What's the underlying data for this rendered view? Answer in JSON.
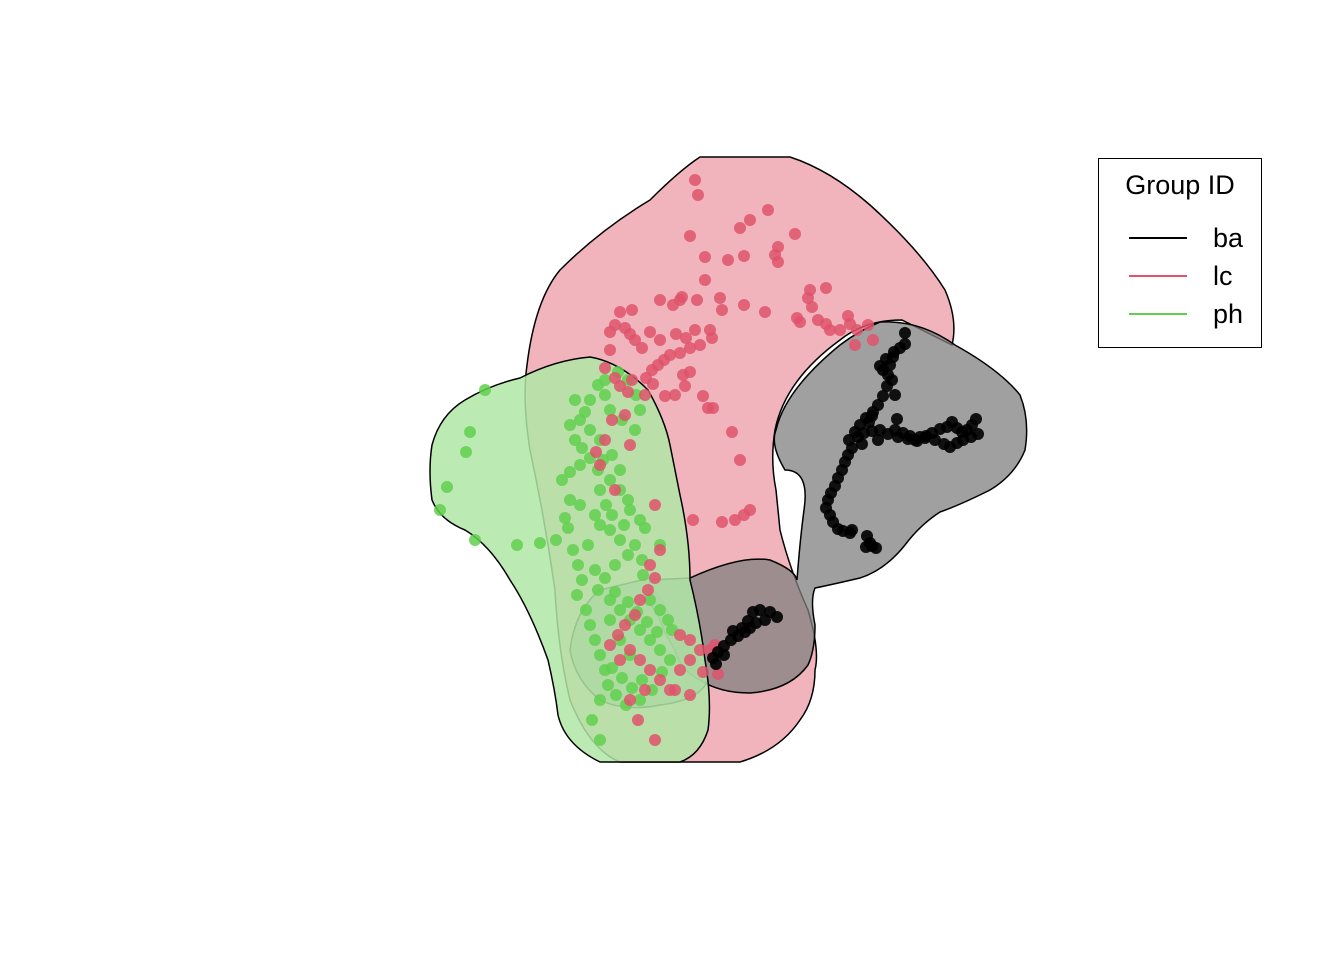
{
  "chart_data": {
    "type": "scatter",
    "title": "",
    "xlabel": "",
    "ylabel": "",
    "axes_shown": false,
    "grid": false,
    "legend": {
      "title": "Group ID",
      "placement": "top-right",
      "items": [
        {
          "label": "ba",
          "color": "#000000"
        },
        {
          "label": "lc",
          "color": "#DF536B"
        },
        {
          "label": "ph",
          "color": "#61D04F"
        }
      ]
    },
    "series": [
      {
        "name": "ba",
        "color": "#000000",
        "hull_fill": "#808080",
        "points": [
          [
            905,
            333
          ],
          [
            900,
            348
          ],
          [
            893,
            357
          ],
          [
            890,
            365
          ],
          [
            888,
            375
          ],
          [
            887,
            386
          ],
          [
            883,
            396
          ],
          [
            878,
            405
          ],
          [
            873,
            412
          ],
          [
            866,
            418
          ],
          [
            860,
            425
          ],
          [
            855,
            432
          ],
          [
            849,
            440
          ],
          [
            852,
            448
          ],
          [
            848,
            455
          ],
          [
            845,
            462
          ],
          [
            842,
            470
          ],
          [
            838,
            478
          ],
          [
            835,
            486
          ],
          [
            831,
            493
          ],
          [
            828,
            500
          ],
          [
            826,
            508
          ],
          [
            830,
            515
          ],
          [
            833,
            522
          ],
          [
            838,
            529
          ],
          [
            843,
            531
          ],
          [
            850,
            533
          ],
          [
            852,
            530
          ],
          [
            867,
            536
          ],
          [
            870,
            543
          ],
          [
            876,
            548
          ],
          [
            866,
            547
          ],
          [
            872,
            546
          ],
          [
            895,
            430
          ],
          [
            903,
            433
          ],
          [
            910,
            436
          ],
          [
            915,
            440
          ],
          [
            920,
            437
          ],
          [
            926,
            436
          ],
          [
            932,
            433
          ],
          [
            940,
            429
          ],
          [
            947,
            427
          ],
          [
            952,
            422
          ],
          [
            957,
            428
          ],
          [
            962,
            432
          ],
          [
            967,
            430
          ],
          [
            972,
            425
          ],
          [
            976,
            419
          ],
          [
            978,
            434
          ],
          [
            971,
            437
          ],
          [
            963,
            440
          ],
          [
            957,
            443
          ],
          [
            950,
            447
          ],
          [
            944,
            444
          ],
          [
            935,
            440
          ],
          [
            925,
            438
          ],
          [
            917,
            441
          ],
          [
            908,
            439
          ],
          [
            898,
            437
          ],
          [
            888,
            434
          ],
          [
            880,
            430
          ],
          [
            872,
            431
          ],
          [
            864,
            433
          ],
          [
            858,
            437
          ],
          [
            862,
            444
          ],
          [
            895,
            395
          ],
          [
            892,
            380
          ],
          [
            883,
            370
          ],
          [
            897,
            419
          ],
          [
            869,
            422
          ],
          [
            905,
            344
          ],
          [
            894,
            352
          ],
          [
            886,
            359
          ],
          [
            880,
            366
          ],
          [
            872,
            416
          ],
          [
            878,
            440
          ],
          [
            760,
            610
          ],
          [
            770,
            612
          ],
          [
            777,
            617
          ],
          [
            765,
            620
          ],
          [
            756,
            623
          ],
          [
            750,
            628
          ],
          [
            745,
            632
          ],
          [
            738,
            636
          ],
          [
            731,
            640
          ],
          [
            724,
            646
          ],
          [
            718,
            652
          ],
          [
            713,
            658
          ],
          [
            716,
            664
          ],
          [
            724,
            655
          ],
          [
            742,
            628
          ],
          [
            733,
            631
          ],
          [
            753,
            612
          ],
          [
            748,
            621
          ]
        ]
      },
      {
        "name": "lc",
        "color": "#DF536B",
        "hull_fill": "#EEA7B2",
        "points": [
          [
            695,
            180
          ],
          [
            698,
            195
          ],
          [
            768,
            210
          ],
          [
            750,
            220
          ],
          [
            740,
            228
          ],
          [
            795,
            234
          ],
          [
            690,
            236
          ],
          [
            778,
            247
          ],
          [
            778,
            262
          ],
          [
            744,
            256
          ],
          [
            728,
            260
          ],
          [
            705,
            257
          ],
          [
            775,
            255
          ],
          [
            705,
            280
          ],
          [
            810,
            290
          ],
          [
            826,
            288
          ],
          [
            808,
            298
          ],
          [
            660,
            300
          ],
          [
            680,
            300
          ],
          [
            682,
            297
          ],
          [
            673,
            305
          ],
          [
            620,
            312
          ],
          [
            632,
            310
          ],
          [
            697,
            300
          ],
          [
            720,
            298
          ],
          [
            722,
            310
          ],
          [
            744,
            305
          ],
          [
            765,
            312
          ],
          [
            812,
            307
          ],
          [
            800,
            322
          ],
          [
            797,
            318
          ],
          [
            818,
            320
          ],
          [
            826,
            324
          ],
          [
            830,
            330
          ],
          [
            840,
            330
          ],
          [
            848,
            316
          ],
          [
            850,
            324
          ],
          [
            857,
            330
          ],
          [
            868,
            325
          ],
          [
            873,
            340
          ],
          [
            855,
            345
          ],
          [
            625,
            328
          ],
          [
            615,
            325
          ],
          [
            610,
            332
          ],
          [
            630,
            334
          ],
          [
            650,
            332
          ],
          [
            635,
            340
          ],
          [
            642,
            348
          ],
          [
            660,
            340
          ],
          [
            676,
            334
          ],
          [
            686,
            338
          ],
          [
            695,
            330
          ],
          [
            710,
            330
          ],
          [
            712,
            338
          ],
          [
            700,
            345
          ],
          [
            690,
            348
          ],
          [
            680,
            353
          ],
          [
            670,
            355
          ],
          [
            664,
            360
          ],
          [
            658,
            365
          ],
          [
            652,
            370
          ],
          [
            646,
            378
          ],
          [
            653,
            384
          ],
          [
            683,
            375
          ],
          [
            690,
            372
          ],
          [
            610,
            350
          ],
          [
            605,
            368
          ],
          [
            615,
            378
          ],
          [
            620,
            386
          ],
          [
            628,
            392
          ],
          [
            665,
            396
          ],
          [
            675,
            395
          ],
          [
            685,
            386
          ],
          [
            703,
            396
          ],
          [
            713,
            408
          ],
          [
            708,
            408
          ],
          [
            732,
            432
          ],
          [
            740,
            460
          ],
          [
            693,
            520
          ],
          [
            722,
            522
          ],
          [
            735,
            520
          ],
          [
            744,
            515
          ],
          [
            750,
            510
          ],
          [
            615,
            490
          ],
          [
            600,
            465
          ],
          [
            596,
            452
          ],
          [
            605,
            440
          ],
          [
            612,
            420
          ],
          [
            625,
            415
          ],
          [
            632,
            380
          ],
          [
            645,
            395
          ],
          [
            630,
            445
          ],
          [
            655,
            505
          ],
          [
            660,
            550
          ],
          [
            650,
            565
          ],
          [
            655,
            578
          ],
          [
            648,
            590
          ],
          [
            640,
            600
          ],
          [
            635,
            615
          ],
          [
            625,
            625
          ],
          [
            618,
            635
          ],
          [
            610,
            645
          ],
          [
            620,
            660
          ],
          [
            630,
            650
          ],
          [
            640,
            660
          ],
          [
            650,
            670
          ],
          [
            660,
            680
          ],
          [
            670,
            690
          ],
          [
            680,
            670
          ],
          [
            690,
            660
          ],
          [
            700,
            650
          ],
          [
            690,
            640
          ],
          [
            680,
            635
          ],
          [
            675,
            690
          ],
          [
            690,
            695
          ],
          [
            710,
            650
          ],
          [
            715,
            645
          ],
          [
            703,
            672
          ],
          [
            718,
            674
          ],
          [
            655,
            740
          ],
          [
            638,
            720
          ],
          [
            645,
            690
          ],
          [
            630,
            700
          ]
        ]
      },
      {
        "name": "ph",
        "color": "#61D04F",
        "hull_fill": "#B0E6A6",
        "points": [
          [
            485,
            390
          ],
          [
            470,
            432
          ],
          [
            466,
            452
          ],
          [
            447,
            487
          ],
          [
            440,
            510
          ],
          [
            475,
            540
          ],
          [
            517,
            545
          ],
          [
            540,
            543
          ],
          [
            556,
            540
          ],
          [
            570,
            500
          ],
          [
            565,
            518
          ],
          [
            568,
            528
          ],
          [
            573,
            550
          ],
          [
            578,
            565
          ],
          [
            582,
            580
          ],
          [
            577,
            595
          ],
          [
            586,
            610
          ],
          [
            590,
            625
          ],
          [
            595,
            640
          ],
          [
            600,
            655
          ],
          [
            605,
            670
          ],
          [
            608,
            685
          ],
          [
            600,
            700
          ],
          [
            592,
            720
          ],
          [
            600,
            740
          ],
          [
            603,
            460
          ],
          [
            598,
            470
          ],
          [
            610,
            480
          ],
          [
            620,
            490
          ],
          [
            628,
            500
          ],
          [
            606,
            505
          ],
          [
            595,
            515
          ],
          [
            600,
            525
          ],
          [
            610,
            530
          ],
          [
            620,
            540
          ],
          [
            628,
            555
          ],
          [
            615,
            565
          ],
          [
            605,
            578
          ],
          [
            598,
            590
          ],
          [
            610,
            600
          ],
          [
            620,
            610
          ],
          [
            630,
            620
          ],
          [
            640,
            630
          ],
          [
            650,
            640
          ],
          [
            660,
            650
          ],
          [
            670,
            660
          ],
          [
            650,
            600
          ],
          [
            660,
            610
          ],
          [
            668,
            620
          ],
          [
            672,
            630
          ],
          [
            643,
            575
          ],
          [
            642,
            560
          ],
          [
            660,
            545
          ],
          [
            645,
            528
          ],
          [
            640,
            520
          ],
          [
            630,
            510
          ],
          [
            620,
            470
          ],
          [
            612,
            455
          ],
          [
            600,
            440
          ],
          [
            590,
            430
          ],
          [
            580,
            420
          ],
          [
            570,
            425
          ],
          [
            575,
            440
          ],
          [
            582,
            448
          ],
          [
            590,
            458
          ],
          [
            580,
            465
          ],
          [
            570,
            472
          ],
          [
            562,
            480
          ],
          [
            598,
            385
          ],
          [
            605,
            395
          ],
          [
            610,
            410
          ],
          [
            622,
            420
          ],
          [
            635,
            430
          ],
          [
            640,
            410
          ],
          [
            636,
            395
          ],
          [
            628,
            380
          ],
          [
            618,
            372
          ],
          [
            605,
            380
          ],
          [
            590,
            400
          ],
          [
            585,
            412
          ],
          [
            575,
            400
          ],
          [
            600,
            490
          ],
          [
            612,
            515
          ],
          [
            624,
            525
          ],
          [
            635,
            545
          ],
          [
            615,
            592
          ],
          [
            628,
            602
          ],
          [
            637,
            612
          ],
          [
            647,
            622
          ],
          [
            657,
            632
          ],
          [
            610,
            620
          ],
          [
            620,
            640
          ],
          [
            630,
            655
          ],
          [
            612,
            668
          ],
          [
            622,
            678
          ],
          [
            632,
            688
          ],
          [
            642,
            680
          ],
          [
            652,
            690
          ],
          [
            662,
            672
          ],
          [
            616,
            695
          ],
          [
            626,
            705
          ],
          [
            640,
            700
          ],
          [
            580,
            505
          ],
          [
            588,
            545
          ],
          [
            595,
            570
          ]
        ]
      }
    ]
  }
}
